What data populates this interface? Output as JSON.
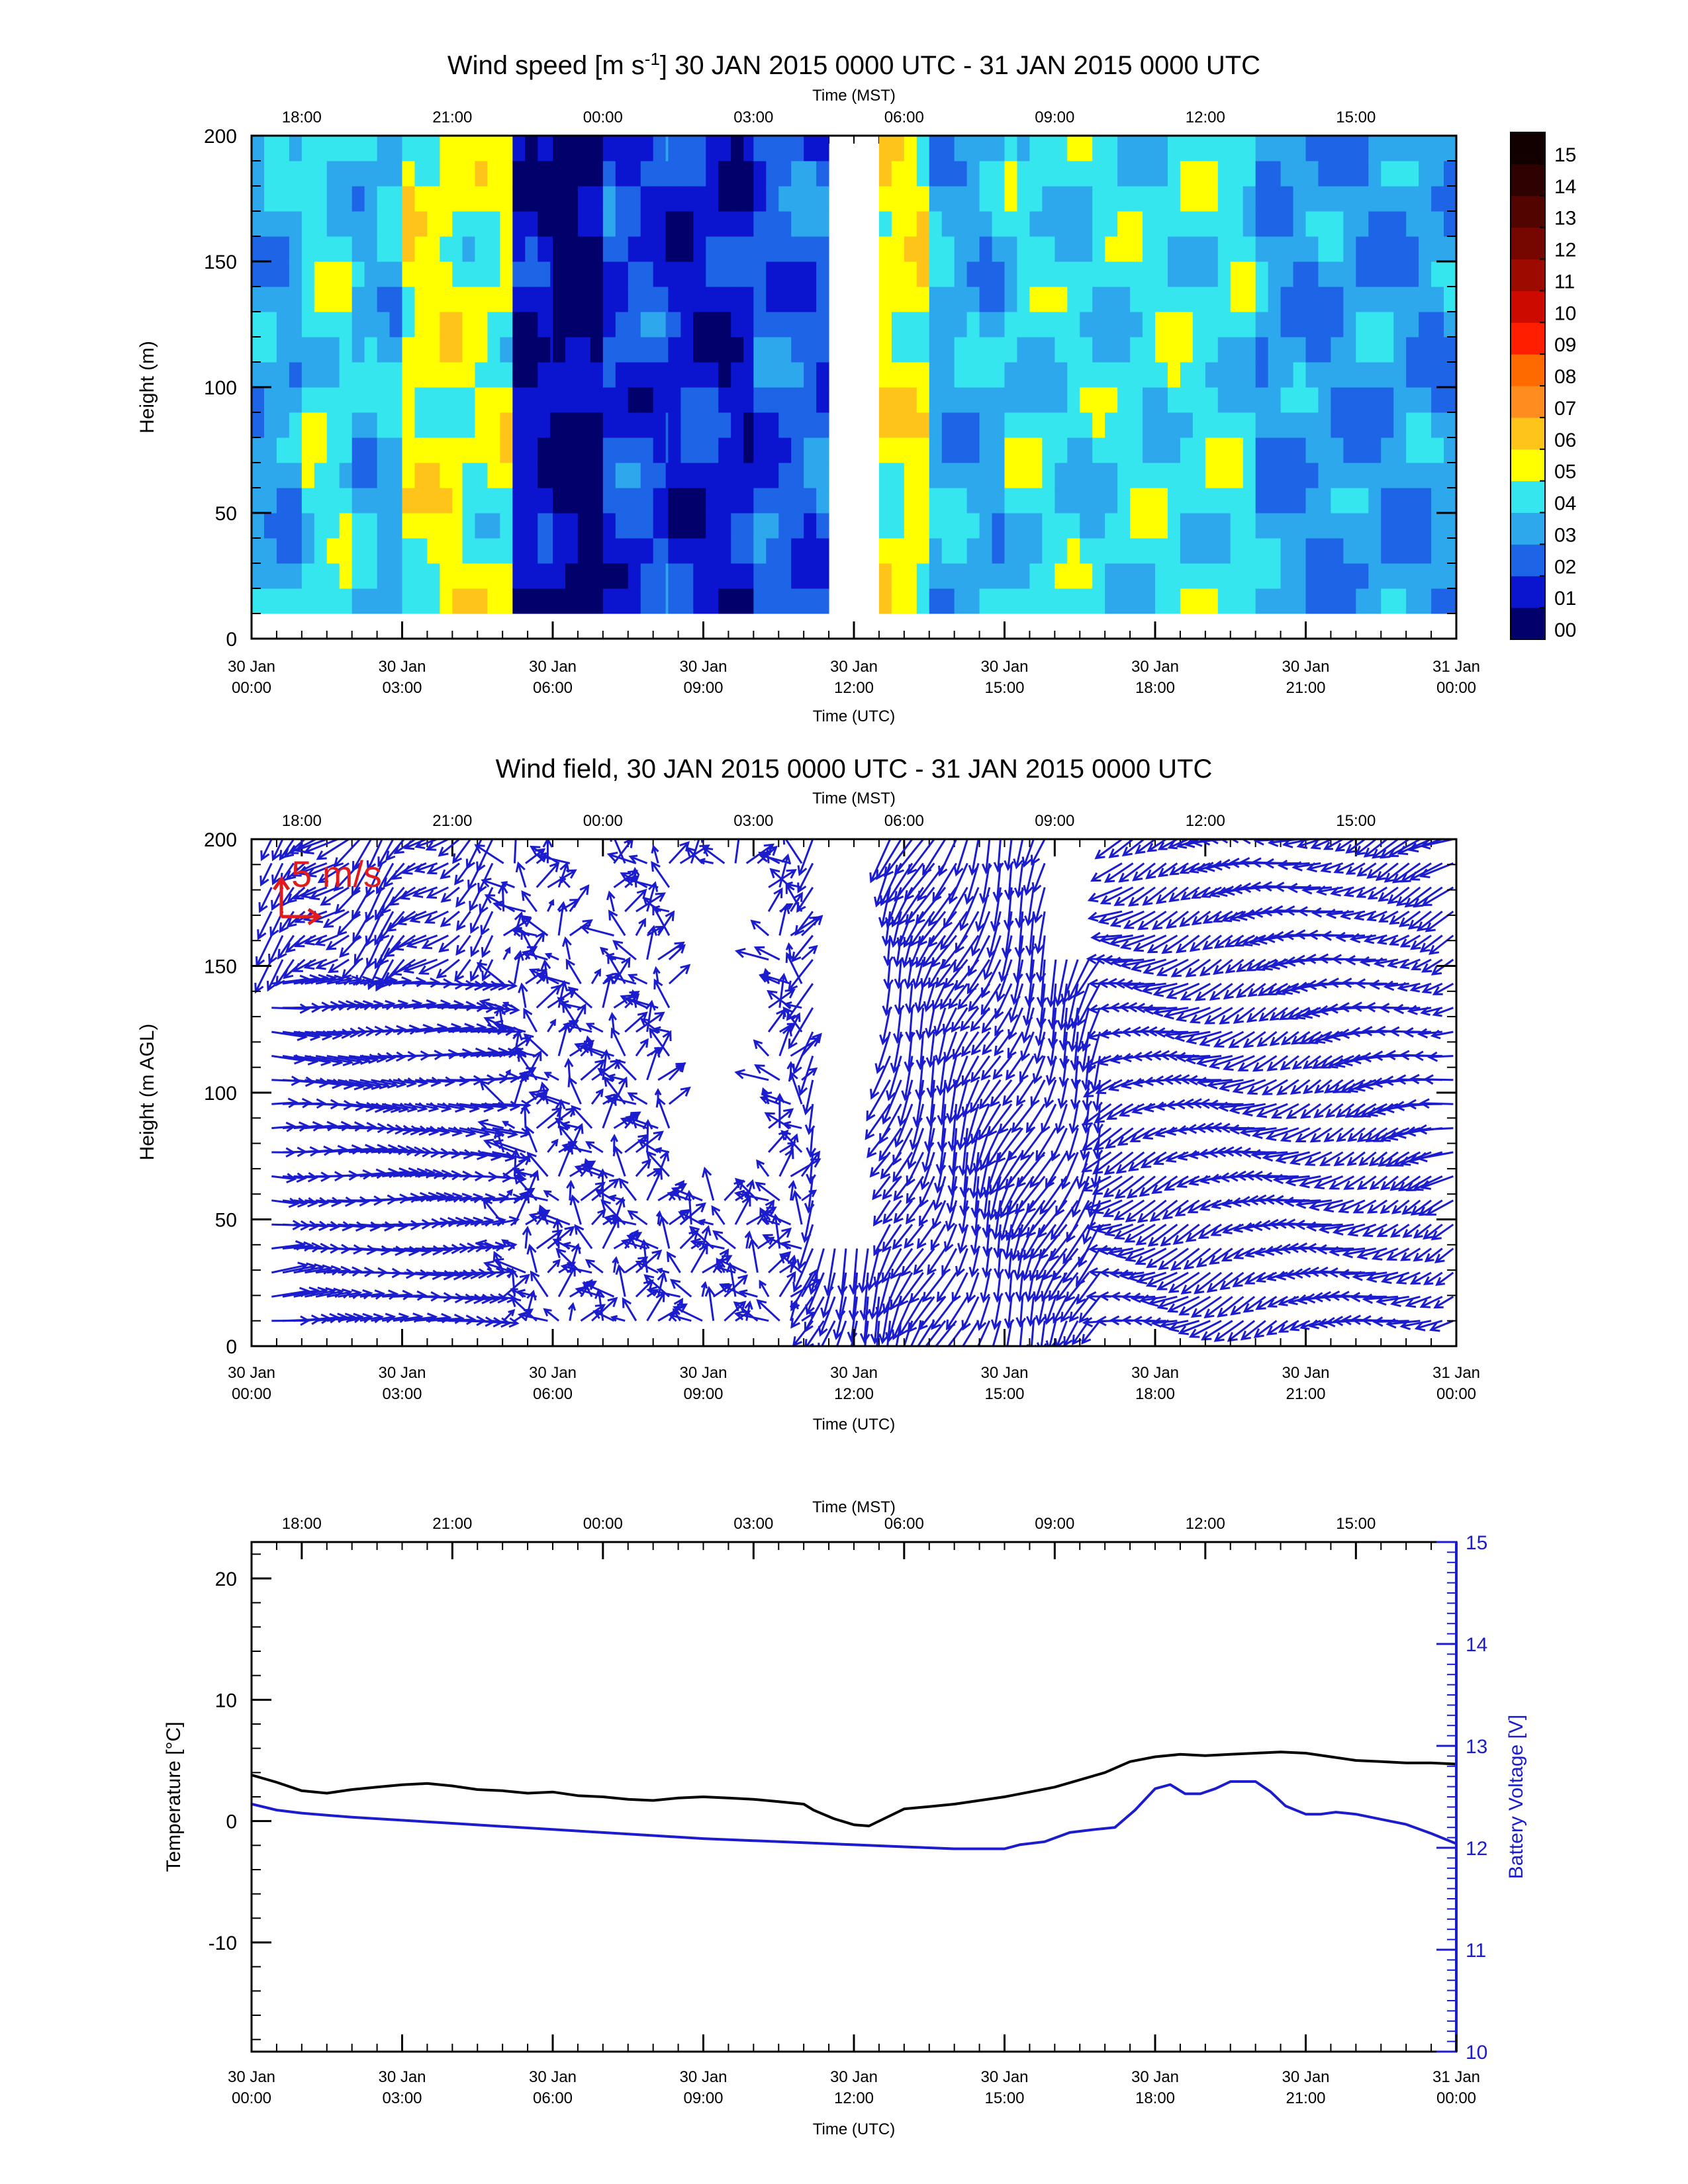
{
  "colors": {
    "wind_arrow": "#1c1ccf",
    "scale_arrow": "#e11b1b",
    "temperature": "#000000",
    "battery": "#1c1ccf",
    "speed_colormap": [
      "#02006a",
      "#0b14cf",
      "#1e64e6",
      "#2ea8ec",
      "#35e6ee",
      "#ffff00",
      "#ffc41a",
      "#ff8c1e",
      "#ff6a00",
      "#ff1f00",
      "#cc0a00",
      "#9d0a00",
      "#750600",
      "#510400",
      "#2e0200",
      "#120000"
    ]
  },
  "top_axis": {
    "label": "Time (MST)",
    "ticks": [
      "18:00",
      "21:00",
      "00:00",
      "03:00",
      "06:00",
      "09:00",
      "12:00",
      "15:00"
    ]
  },
  "bottom_axis": {
    "label": "Time (UTC)",
    "ticks": [
      {
        "day": "30 Jan",
        "time": "00:00"
      },
      {
        "day": "30 Jan",
        "time": "03:00"
      },
      {
        "day": "30 Jan",
        "time": "06:00"
      },
      {
        "day": "30 Jan",
        "time": "09:00"
      },
      {
        "day": "30 Jan",
        "time": "12:00"
      },
      {
        "day": "30 Jan",
        "time": "15:00"
      },
      {
        "day": "30 Jan",
        "time": "18:00"
      },
      {
        "day": "30 Jan",
        "time": "21:00"
      },
      {
        "day": "31 Jan",
        "time": "00:00"
      }
    ]
  },
  "chart_data": [
    {
      "type": "heatmap",
      "title_main": "Wind speed [m s",
      "title_sup": "-1",
      "title_rest": "] 30 JAN 2015 0000 UTC - 31 JAN 2015 0000 UTC",
      "xlabel": "Time (UTC)",
      "xlabel_top": "Time (MST)",
      "ylabel": "Height (m)",
      "yticks": [
        "0",
        "50",
        "100",
        "150",
        "200"
      ],
      "xlim_hours": [
        0,
        24
      ],
      "ylim": [
        0,
        200
      ],
      "colorbar": {
        "labels": [
          "00",
          "01",
          "02",
          "03",
          "04",
          "05",
          "06",
          "07",
          "08",
          "09",
          "10",
          "11",
          "12",
          "13",
          "14",
          "15"
        ],
        "range": [
          0,
          15
        ],
        "units": "m s-1"
      },
      "value_bands": [
        {
          "t0": 0.0,
          "t1": 1.0,
          "speed": 3.5
        },
        {
          "t0": 1.0,
          "t1": 2.0,
          "speed": 4.5
        },
        {
          "t0": 2.0,
          "t1": 3.0,
          "speed": 3.8
        },
        {
          "t0": 3.0,
          "t1": 4.2,
          "speed": 5.4
        },
        {
          "t0": 4.2,
          "t1": 5.2,
          "speed": 5.0
        },
        {
          "t0": 5.2,
          "t1": 6.0,
          "speed": 1.2
        },
        {
          "t0": 6.0,
          "t1": 7.0,
          "speed": 0.6
        },
        {
          "t0": 7.0,
          "t1": 8.3,
          "speed": 2.0
        },
        {
          "t0": 8.3,
          "t1": 10.0,
          "speed": 1.5
        },
        {
          "t0": 10.0,
          "t1": 11.5,
          "speed": 2.5
        },
        {
          "t0": 11.5,
          "t1": 12.5,
          "speed": null
        },
        {
          "t0": 12.5,
          "t1": 13.5,
          "speed": 5.5
        },
        {
          "t0": 13.5,
          "t1": 15.0,
          "speed": 3.6
        },
        {
          "t0": 15.0,
          "t1": 17.5,
          "speed": 4.2
        },
        {
          "t0": 17.5,
          "t1": 20.0,
          "speed": 4.4
        },
        {
          "t0": 20.0,
          "t1": 24.0,
          "speed": 3.2
        }
      ]
    },
    {
      "type": "vector",
      "title": "Wind field, 30 JAN 2015 0000 UTC - 31 JAN 2015 0000 UTC",
      "xlabel": "Time (UTC)",
      "xlabel_top": "Time (MST)",
      "ylabel": "Height (m AGL)",
      "yticks": [
        "0",
        "50",
        "100",
        "150",
        "200"
      ],
      "xlim_hours": [
        0,
        24
      ],
      "ylim": [
        0,
        200
      ],
      "scale_label": "5 m/s",
      "scale_speed": 5
    },
    {
      "type": "line",
      "xlabel": "Time (UTC)",
      "xlabel_top": "Time (MST)",
      "ylabel_left": "Temperature [°C]",
      "ylabel_right": "Battery Voltage [V]",
      "yticks_left": [
        "20",
        "10",
        "0",
        "-10"
      ],
      "yticks_right": [
        "15",
        "14",
        "13",
        "12",
        "11",
        "10"
      ],
      "ylim_left": [
        -19,
        23
      ],
      "ylim_right": [
        10,
        15
      ],
      "xlim_hours": [
        0,
        24
      ],
      "series": [
        {
          "name": "Temperature",
          "axis": "left",
          "x": [
            0,
            0.5,
            1,
            1.5,
            2,
            2.5,
            3,
            3.5,
            4,
            4.5,
            5,
            5.5,
            6,
            6.5,
            7,
            7.5,
            8,
            8.5,
            9,
            9.5,
            10,
            10.5,
            11,
            11.2,
            11.6,
            12,
            12.3,
            12.6,
            13,
            13.5,
            14,
            14.5,
            15,
            15.5,
            16,
            16.5,
            17,
            17.5,
            18,
            18.5,
            19,
            19.5,
            20,
            20.5,
            21,
            21.5,
            22,
            22.5,
            23,
            23.5,
            24
          ],
          "y": [
            3.8,
            3.2,
            2.5,
            2.3,
            2.6,
            2.8,
            3.0,
            3.1,
            2.9,
            2.6,
            2.5,
            2.3,
            2.4,
            2.1,
            2.0,
            1.8,
            1.7,
            1.9,
            2.0,
            1.9,
            1.8,
            1.6,
            1.4,
            0.9,
            0.2,
            -0.3,
            -0.4,
            0.2,
            1.0,
            1.2,
            1.4,
            1.7,
            2.0,
            2.4,
            2.8,
            3.4,
            4.0,
            4.9,
            5.3,
            5.5,
            5.4,
            5.5,
            5.6,
            5.7,
            5.6,
            5.3,
            5.0,
            4.9,
            4.8,
            4.8,
            4.7
          ]
        },
        {
          "name": "Battery Voltage",
          "axis": "right",
          "x": [
            0,
            0.5,
            1,
            2,
            3,
            4,
            5,
            6,
            7,
            8,
            9,
            10,
            11,
            12,
            13,
            14,
            15,
            15.3,
            15.8,
            16.3,
            16.8,
            17.2,
            17.6,
            18,
            18.3,
            18.6,
            18.9,
            19.2,
            19.5,
            20,
            20.3,
            20.6,
            21,
            21.3,
            21.6,
            22,
            22.5,
            23,
            23.5,
            24
          ],
          "y": [
            12.43,
            12.37,
            12.34,
            12.3,
            12.27,
            12.24,
            12.21,
            12.18,
            12.15,
            12.12,
            12.09,
            12.07,
            12.05,
            12.03,
            12.01,
            11.99,
            11.99,
            12.03,
            12.06,
            12.15,
            12.18,
            12.2,
            12.37,
            12.58,
            12.62,
            12.53,
            12.53,
            12.58,
            12.65,
            12.65,
            12.55,
            12.41,
            12.33,
            12.33,
            12.35,
            12.33,
            12.28,
            12.23,
            12.14,
            12.04
          ]
        }
      ]
    }
  ]
}
